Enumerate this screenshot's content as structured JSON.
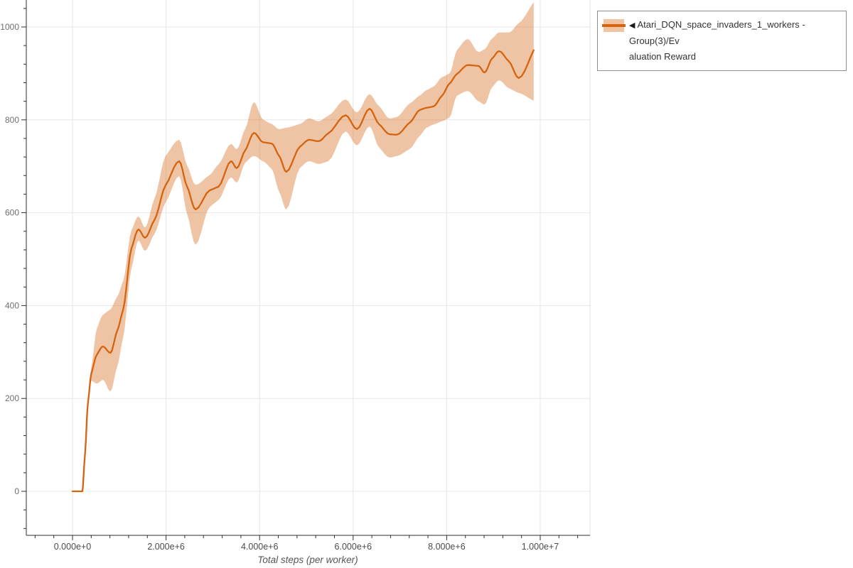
{
  "legend": {
    "collapse_icon": "◀",
    "label_line1": "Atari_DQN_space_invaders_1_workers - Group(3)/Ev",
    "label_line2": "aluation Reward",
    "border_color": "#8e8e8e",
    "band_color": "#f0c49e",
    "line_color": "#d4640f"
  },
  "colors": {
    "background": "#ffffff",
    "grid": "#e7e7e7",
    "plot_border": "#e0e0e0",
    "axis": "#2f2f2f",
    "x_tick_label": "#4a4a4a",
    "y_tick_label": "#6e6e6e",
    "axis_title": "#555555",
    "series_line": "#d4640f",
    "series_band": "rgba(213,100,15,0.38)"
  },
  "chart_data": {
    "type": "line",
    "title": "",
    "xlabel": "Total steps (per worker)",
    "ylabel": "",
    "grid": true,
    "legend_position": "top-right",
    "xlim": [
      -990000,
      11060000
    ],
    "ylim": [
      -95,
      1058
    ],
    "x_minor_step": 400000,
    "y_minor_step": 40,
    "x_ticks": [
      {
        "value": 0,
        "label": "0.000e+0"
      },
      {
        "value": 2000000,
        "label": "2.000e+6"
      },
      {
        "value": 4000000,
        "label": "4.000e+6"
      },
      {
        "value": 6000000,
        "label": "6.000e+6"
      },
      {
        "value": 8000000,
        "label": "8.000e+6"
      },
      {
        "value": 10000000,
        "label": "1.000e+7"
      }
    ],
    "y_ticks": [
      {
        "value": 0,
        "label": "0"
      },
      {
        "value": 200,
        "label": "200"
      },
      {
        "value": 400,
        "label": "400"
      },
      {
        "value": 600,
        "label": "600"
      },
      {
        "value": 800,
        "label": "800"
      },
      {
        "value": 1000,
        "label": "1000"
      }
    ],
    "series": [
      {
        "name": "Atari_DQN_space_invaders_1_workers - Group(3)/Evaluation Reward",
        "color": "#d4640f",
        "band_fill": "rgba(213,100,15,0.38)",
        "points_format": [
          "steps",
          "mean_reward",
          "band_lower",
          "band_upper"
        ],
        "points": [
          [
            0,
            0,
            0,
            0
          ],
          [
            210000,
            0,
            0,
            0
          ],
          [
            260000,
            70,
            66,
            74
          ],
          [
            330000,
            190,
            182,
            198
          ],
          [
            400000,
            252,
            238,
            266
          ],
          [
            520000,
            294,
            232,
            350
          ],
          [
            650000,
            312,
            240,
            380
          ],
          [
            810000,
            298,
            215,
            392
          ],
          [
            960000,
            347,
            270,
            420
          ],
          [
            1080000,
            390,
            330,
            452
          ],
          [
            1260000,
            523,
            480,
            562
          ],
          [
            1410000,
            564,
            540,
            592
          ],
          [
            1550000,
            546,
            518,
            568
          ],
          [
            1750000,
            584,
            554,
            630
          ],
          [
            1990000,
            659,
            622,
            722
          ],
          [
            2280000,
            711,
            679,
            757
          ],
          [
            2450000,
            656,
            597,
            702
          ],
          [
            2630000,
            607,
            531,
            660
          ],
          [
            2930000,
            648,
            612,
            681
          ],
          [
            3120000,
            656,
            627,
            704
          ],
          [
            3390000,
            711,
            676,
            748
          ],
          [
            3510000,
            696,
            665,
            737
          ],
          [
            3690000,
            734,
            707,
            780
          ],
          [
            3880000,
            772,
            722,
            838
          ],
          [
            4070000,
            752,
            711,
            801
          ],
          [
            4260000,
            749,
            694,
            791
          ],
          [
            4420000,
            722,
            645,
            780
          ],
          [
            4570000,
            688,
            607,
            783
          ],
          [
            4860000,
            742,
            696,
            791
          ],
          [
            5060000,
            757,
            711,
            803
          ],
          [
            5260000,
            754,
            705,
            797
          ],
          [
            5470000,
            771,
            711,
            809
          ],
          [
            5840000,
            810,
            775,
            844
          ],
          [
            6080000,
            780,
            745,
            816
          ],
          [
            6350000,
            824,
            786,
            855
          ],
          [
            6550000,
            791,
            741,
            830
          ],
          [
            6780000,
            769,
            719,
            803
          ],
          [
            6930000,
            768,
            722,
            806
          ],
          [
            7220000,
            795,
            738,
            836
          ],
          [
            7420000,
            821,
            765,
            852
          ],
          [
            7570000,
            826,
            783,
            864
          ],
          [
            7720000,
            829,
            790,
            872
          ],
          [
            7900000,
            852,
            797,
            892
          ],
          [
            8060000,
            878,
            805,
            900
          ],
          [
            8220000,
            899,
            852,
            950
          ],
          [
            8450000,
            918,
            862,
            974
          ],
          [
            8680000,
            916,
            840,
            946
          ],
          [
            8810000,
            902,
            833,
            952
          ],
          [
            8970000,
            932,
            870,
            975
          ],
          [
            9120000,
            948,
            885,
            988
          ],
          [
            9330000,
            926,
            868,
            988
          ],
          [
            9540000,
            890,
            858,
            1008
          ],
          [
            9860000,
            950,
            841,
            1054
          ]
        ]
      }
    ]
  }
}
